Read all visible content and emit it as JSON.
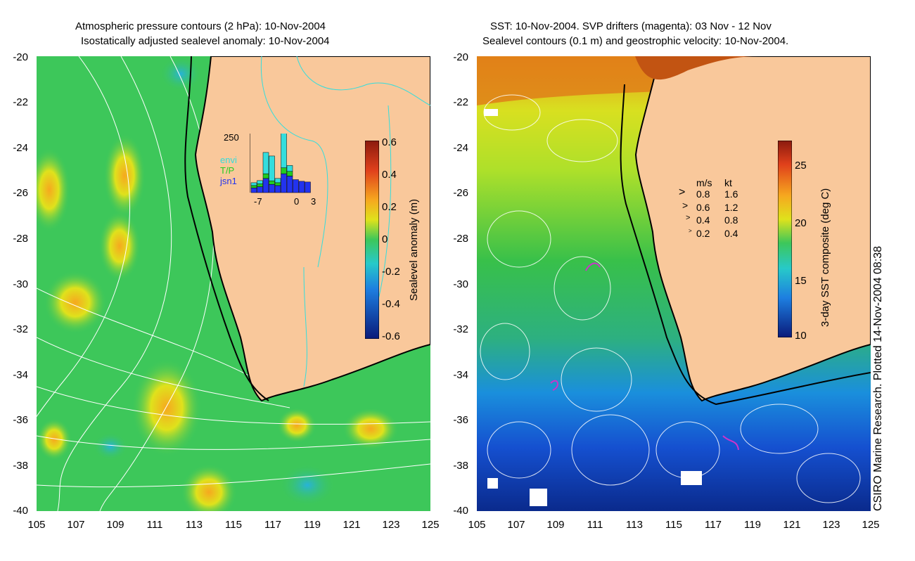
{
  "left_map": {
    "title_line1": "Atmospheric pressure contours (2 hPa): 10-Nov-2004",
    "title_line2": "Isostatically adjusted sealevel anomaly: 10-Nov-2004",
    "y_ticks": [
      "-20",
      "-22",
      "-24",
      "-26",
      "-28",
      "-30",
      "-32",
      "-34",
      "-36",
      "-38",
      "-40"
    ],
    "x_ticks": [
      "105",
      "107",
      "109",
      "111",
      "113",
      "115",
      "117",
      "119",
      "121",
      "123",
      "125"
    ],
    "colorbar": {
      "label": "Sealevel anomaly (m)",
      "ticks": [
        "0.6",
        "0.4",
        "0.2",
        "0",
        "-0.2",
        "-0.4",
        "-0.6"
      ],
      "range": [
        -0.6,
        0.6
      ]
    },
    "inset": {
      "y_label": "250",
      "x_ticks": [
        "-7",
        "0",
        "3"
      ],
      "legend": [
        {
          "label": "envi",
          "color": "#33dddd"
        },
        {
          "label": "T/P",
          "color": "#22cc22"
        },
        {
          "label": "jsn1",
          "color": "#2233ee"
        }
      ],
      "bars": [
        {
          "day": -7,
          "jsn1": 20,
          "tp": 10,
          "envi": 12
        },
        {
          "day": -6,
          "jsn1": 25,
          "tp": 12,
          "envi": 14
        },
        {
          "day": -5,
          "jsn1": 60,
          "tp": 20,
          "envi": 90
        },
        {
          "day": -4,
          "jsn1": 35,
          "tp": 15,
          "envi": 105
        },
        {
          "day": -3,
          "jsn1": 30,
          "tp": 12,
          "envi": 18
        },
        {
          "day": -2,
          "jsn1": 80,
          "tp": 25,
          "envi": 150
        },
        {
          "day": -1,
          "jsn1": 70,
          "tp": 20,
          "envi": 25
        },
        {
          "day": 0,
          "jsn1": 55,
          "tp": 0,
          "envi": 0
        },
        {
          "day": 1,
          "jsn1": 48,
          "tp": 0,
          "envi": 0
        },
        {
          "day": 2,
          "jsn1": 45,
          "tp": 0,
          "envi": 0
        }
      ]
    }
  },
  "right_map": {
    "title_line1": "SST: 10-Nov-2004. SVP drifters (magenta): 03 Nov - 12 Nov",
    "title_line2": "Sealevel contours (0.1 m) and geostrophic velocity: 10-Nov-2004.",
    "y_ticks": [
      "-20",
      "-22",
      "-24",
      "-26",
      "-28",
      "-30",
      "-32",
      "-34",
      "-36",
      "-38",
      "-40"
    ],
    "x_ticks": [
      "105",
      "107",
      "109",
      "111",
      "113",
      "115",
      "117",
      "119",
      "121",
      "123",
      "125"
    ],
    "colorbar": {
      "label": "3-day SST composite (deg C)",
      "ticks": [
        "25",
        "20",
        "15",
        "10"
      ],
      "range": [
        10,
        27
      ]
    },
    "velocity_legend": {
      "header_ms": "m/s",
      "header_kt": "kt",
      "rows": [
        {
          "ms": "0.8",
          "kt": "1.6"
        },
        {
          "ms": "0.6",
          "kt": "1.2"
        },
        {
          "ms": "0.4",
          "kt": "0.8"
        },
        {
          "ms": "0.2",
          "kt": "0.4"
        }
      ]
    }
  },
  "credit": "CSIRO Marine Research. Plotted 14-Nov-2004 08:38",
  "colors": {
    "land": "#f9c89b",
    "ocean_green": "#3dc75a",
    "coast": "#000000",
    "contour_white": "#ffffff",
    "contour_cyan": "#33dddd",
    "drifter": "#cc33cc"
  }
}
